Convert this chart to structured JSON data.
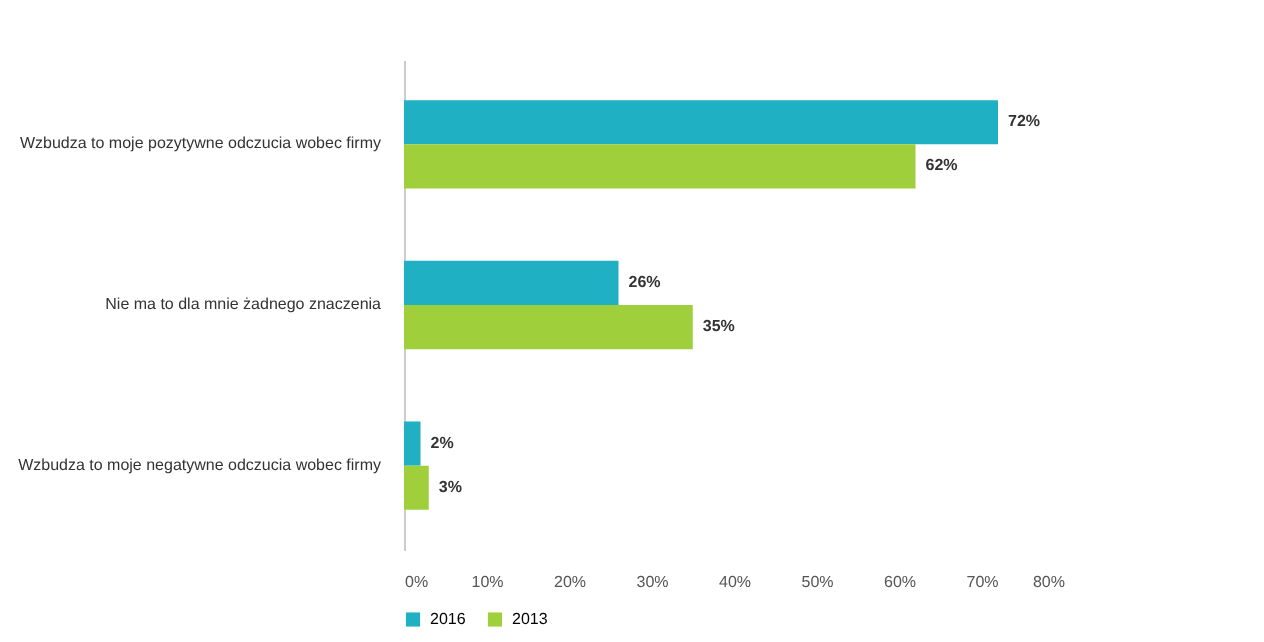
{
  "chart_data": {
    "type": "bar",
    "orientation": "horizontal",
    "categories": [
      "Wzbudza to moje pozytywne odczucia wobec firmy",
      "Nie ma to dla mnie żadnego znaczenia",
      "Wzbudza to moje negatywne odczucia wobec firmy"
    ],
    "series": [
      {
        "name": "2016",
        "color": "#1fb0c3",
        "values": [
          72,
          26,
          2
        ],
        "value_labels": [
          "72%",
          "26%",
          "2%"
        ]
      },
      {
        "name": "2013",
        "color": "#9fd03c",
        "values": [
          62,
          35,
          3
        ],
        "value_labels": [
          "62%",
          "35%",
          "3%"
        ]
      }
    ],
    "xlim": [
      0,
      80
    ],
    "xticks": [
      {
        "value": 0,
        "label": "0%"
      },
      {
        "value": 10,
        "label": "10%"
      },
      {
        "value": 20,
        "label": "20%"
      },
      {
        "value": 30,
        "label": "30%"
      },
      {
        "value": 40,
        "label": "40%"
      },
      {
        "value": 50,
        "label": "50%"
      },
      {
        "value": 60,
        "label": "60%"
      },
      {
        "value": 70,
        "label": "70%"
      },
      {
        "value": 80,
        "label": "80%"
      }
    ],
    "grid": false,
    "legend": "bottom"
  }
}
